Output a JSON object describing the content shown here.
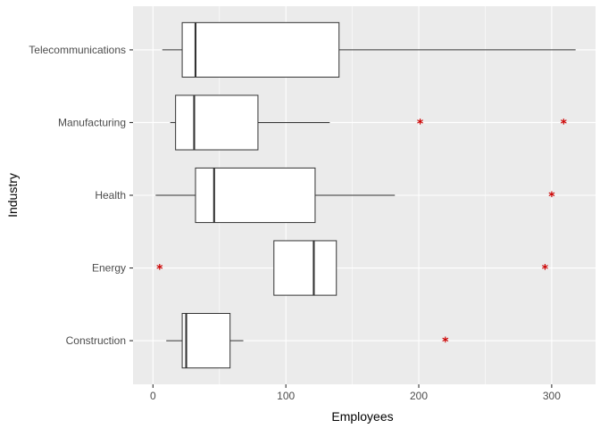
{
  "chart_data": {
    "type": "boxplot",
    "orientation": "horizontal",
    "xlabel": "Employees",
    "ylabel": "Industry",
    "xlim": [
      -15,
      333
    ],
    "x_ticks": [
      0,
      100,
      200,
      300
    ],
    "x_tick_labels": [
      "0",
      "100",
      "200",
      "300"
    ],
    "grid": true,
    "categories": [
      "Construction",
      "Energy",
      "Health",
      "Manufacturing",
      "Telecommunications"
    ],
    "boxes": [
      {
        "category": "Construction",
        "whisker_low": 10,
        "q1": 22,
        "median": 25,
        "q3": 58,
        "whisker_high": 68,
        "outliers": [
          220
        ]
      },
      {
        "category": "Energy",
        "whisker_low": 91,
        "q1": 91,
        "median": 121,
        "q3": 138,
        "whisker_high": 138,
        "outliers": [
          5,
          295
        ]
      },
      {
        "category": "Health",
        "whisker_low": 2,
        "q1": 32,
        "median": 46,
        "q3": 122,
        "whisker_high": 182,
        "outliers": [
          300
        ]
      },
      {
        "category": "Manufacturing",
        "whisker_low": 13,
        "q1": 17,
        "median": 31,
        "q3": 79,
        "whisker_high": 133,
        "outliers": [
          201,
          309
        ]
      },
      {
        "category": "Telecommunications",
        "whisker_low": 7,
        "q1": 22,
        "median": 32,
        "q3": 140,
        "whisker_high": 318,
        "outliers": []
      }
    ],
    "colors": {
      "panel_background": "#ebebeb",
      "grid_major": "#ffffff",
      "box_fill": "#ffffff",
      "box_line": "#333333",
      "outlier": "#cc0000",
      "tick_text": "#4d4d4d",
      "title_text": "#000000"
    }
  }
}
